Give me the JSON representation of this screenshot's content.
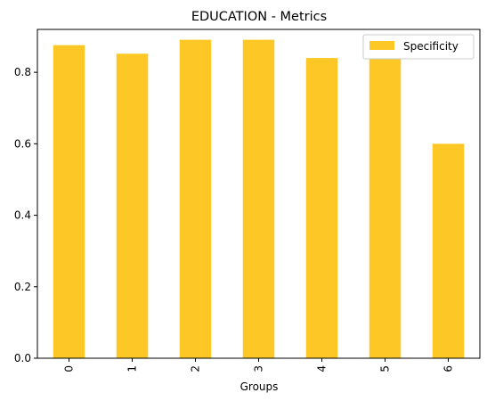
{
  "chart_data": {
    "type": "bar",
    "title": "EDUCATION - Metrics",
    "xlabel": "Groups",
    "ylabel": "",
    "categories": [
      "0",
      "1",
      "2",
      "3",
      "4",
      "5",
      "6"
    ],
    "series": [
      {
        "name": "Specificity",
        "values": [
          0.876,
          0.852,
          0.891,
          0.891,
          0.84,
          0.842,
          0.6
        ],
        "color": "#fdc826"
      }
    ],
    "ylim": [
      0,
      0.92
    ],
    "yticks": [
      0.0,
      0.2,
      0.4,
      0.6,
      0.8
    ],
    "ytick_labels": [
      "0.0",
      "0.2",
      "0.4",
      "0.6",
      "0.8"
    ],
    "grid": false,
    "legend_position": "top-right"
  }
}
